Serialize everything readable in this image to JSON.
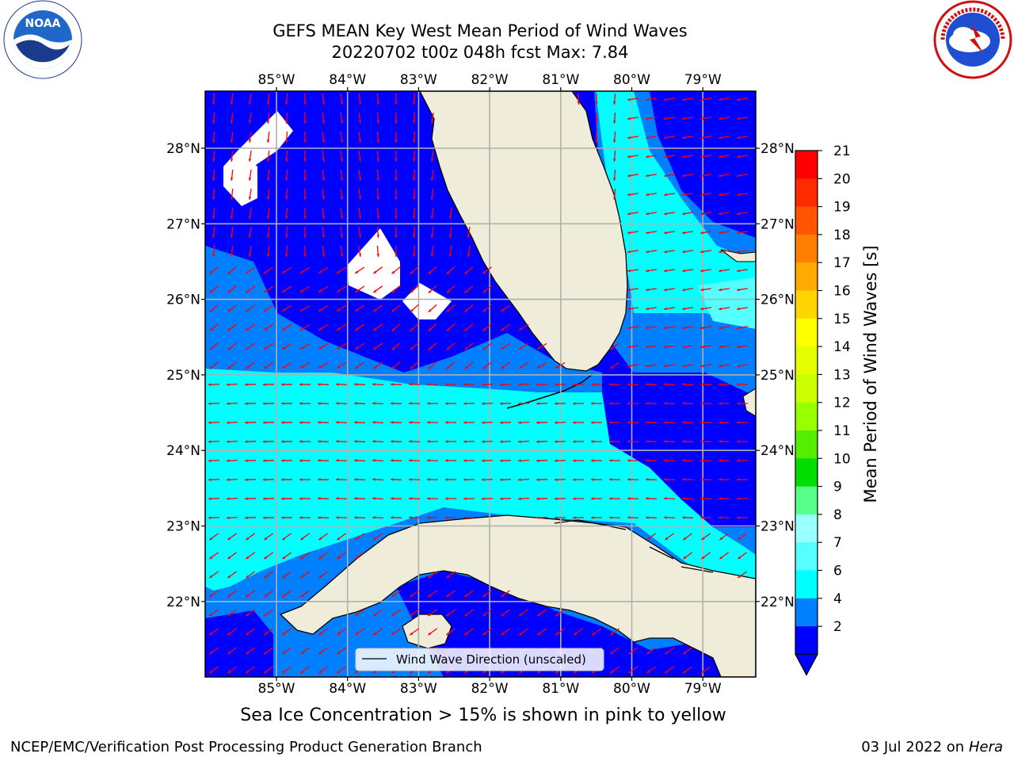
{
  "title_line1": "GEFS MEAN Key West Mean Period of Wind Waves",
  "title_line2": "20220702 t00z 048h fcst   Max: 7.84",
  "logos": {
    "left": "noaa-logo",
    "right": "nws-logo"
  },
  "map": {
    "lon_labels": [
      "85°W",
      "84°W",
      "83°W",
      "82°W",
      "81°W",
      "80°W",
      "79°W"
    ],
    "lat_labels": [
      "28°N",
      "27°N",
      "26°N",
      "25°N",
      "24°N",
      "23°N",
      "22°N"
    ],
    "legend_label": "Wind Wave Direction (unscaled)",
    "arrow_color": "#ff0000",
    "land_color": "#efedd9"
  },
  "colorbar": {
    "label": "Mean Period of Wind Waves [s]",
    "ticks": [
      "21",
      "20",
      "19",
      "18",
      "17",
      "16",
      "15",
      "14",
      "13",
      "12",
      "11",
      "10",
      "9",
      "8",
      "7",
      "6",
      "4",
      "2"
    ],
    "colors": [
      "#ff0000",
      "#ff2a00",
      "#ff5500",
      "#ff8000",
      "#ffaa00",
      "#ffd500",
      "#ffff00",
      "#e6ff00",
      "#ccff00",
      "#99ff00",
      "#55ee00",
      "#00dd00",
      "#55ff88",
      "#99ffff",
      "#55ffff",
      "#00ffff",
      "#0080ff",
      "#0000ff"
    ]
  },
  "subtitle": "Sea Ice Concentration > 15% is shown in pink to yellow",
  "footer_left": "NCEP/EMC/Verification Post Processing Product Generation Branch",
  "footer_date": "03 Jul 2022 on ",
  "footer_host": "Hera"
}
